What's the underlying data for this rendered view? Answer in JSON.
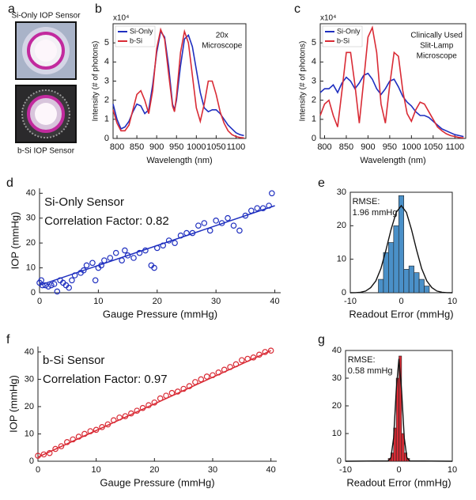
{
  "panel_a": {
    "panel": "a",
    "captions": [
      "Si-Only IOP Sensor",
      "b-Si IOP Sensor"
    ]
  },
  "chart_data": [
    {
      "type": "line",
      "panel": "b",
      "xlabel": "Wavelength (nm)",
      "ylabel": "Intensity (# of photons)",
      "y_exponent": "x10⁴",
      "annotations": [
        "20x",
        "Microscope"
      ],
      "legend": "upper left",
      "box": true,
      "xlim": [
        790,
        1125
      ],
      "xticks": [
        800,
        850,
        900,
        950,
        1000,
        1050,
        1100
      ],
      "ylim": [
        0,
        6
      ],
      "yticks": [
        0,
        1,
        2,
        3,
        4,
        5
      ],
      "x": [
        790,
        800,
        810,
        820,
        830,
        840,
        850,
        860,
        870,
        880,
        890,
        900,
        910,
        920,
        930,
        940,
        945,
        950,
        960,
        970,
        980,
        990,
        1000,
        1010,
        1020,
        1030,
        1040,
        1050,
        1060,
        1070,
        1080,
        1090,
        1100,
        1110,
        1120
      ],
      "series": [
        {
          "name": "Si-Only",
          "color": "#1f2fbf",
          "values": [
            1.8,
            1.0,
            0.5,
            0.6,
            0.9,
            1.4,
            1.8,
            1.7,
            1.3,
            1.5,
            2.8,
            4.5,
            5.6,
            5.3,
            3.8,
            1.8,
            1.5,
            2.0,
            3.8,
            5.2,
            5.4,
            4.8,
            3.6,
            2.4,
            1.6,
            1.4,
            1.5,
            1.5,
            1.3,
            1.0,
            0.7,
            0.5,
            0.3,
            0.2,
            0.15
          ]
        },
        {
          "name": "b-Si",
          "color": "#d92b35",
          "values": [
            1.5,
            0.8,
            0.4,
            0.4,
            0.7,
            1.5,
            2.3,
            2.5,
            2.0,
            1.3,
            2.5,
            4.7,
            5.7,
            5.2,
            3.4,
            1.7,
            1.4,
            2.2,
            4.5,
            5.6,
            5.0,
            3.3,
            1.6,
            0.9,
            1.8,
            3.0,
            3.0,
            2.3,
            1.4,
            0.8,
            0.4,
            0.2,
            0.1,
            0.05,
            0.03
          ]
        }
      ]
    },
    {
      "type": "line",
      "panel": "c",
      "xlabel": "Wavelength (nm)",
      "ylabel": "Intensity (# of photons)",
      "y_exponent": "x10⁴",
      "annotations": [
        "Clinically Used",
        "Slit-Lamp",
        "Microscope"
      ],
      "legend": "upper left",
      "box": true,
      "xlim": [
        790,
        1125
      ],
      "xticks": [
        800,
        850,
        900,
        950,
        1000,
        1050,
        1100
      ],
      "ylim": [
        0,
        6
      ],
      "yticks": [
        0,
        1,
        2,
        3,
        4,
        5
      ],
      "x": [
        790,
        800,
        810,
        820,
        830,
        840,
        850,
        860,
        870,
        880,
        890,
        900,
        910,
        920,
        930,
        940,
        950,
        960,
        970,
        980,
        990,
        1000,
        1010,
        1020,
        1030,
        1040,
        1050,
        1060,
        1070,
        1080,
        1090,
        1100,
        1110,
        1120
      ],
      "series": [
        {
          "name": "Si-Only",
          "color": "#1f2fbf",
          "values": [
            2.4,
            2.6,
            2.6,
            2.8,
            2.4,
            2.9,
            3.2,
            3.0,
            2.6,
            2.9,
            3.3,
            3.4,
            3.1,
            2.6,
            2.3,
            2.6,
            3.0,
            3.1,
            2.7,
            2.2,
            1.9,
            1.7,
            1.4,
            1.2,
            1.2,
            1.1,
            0.9,
            0.7,
            0.5,
            0.4,
            0.3,
            0.2,
            0.15,
            0.1
          ]
        },
        {
          "name": "b-Si",
          "color": "#d92b35",
          "values": [
            1.2,
            1.8,
            2.0,
            1.2,
            0.6,
            2.5,
            4.5,
            4.5,
            2.8,
            0.8,
            3.0,
            5.3,
            5.8,
            4.5,
            1.8,
            0.8,
            2.8,
            4.5,
            4.3,
            2.5,
            1.3,
            0.9,
            1.5,
            1.9,
            1.8,
            1.4,
            1.0,
            0.6,
            0.4,
            0.25,
            0.15,
            0.1,
            0.05,
            0.03
          ]
        }
      ]
    },
    {
      "type": "scatter",
      "panel": "d",
      "xlabel": "Gauge Pressure (mmHg)",
      "ylabel": "IOP (mmHg)",
      "annotations": [
        "Si-Only Sensor",
        "Correlation Factor: 0.82"
      ],
      "box": false,
      "color": "#1f2fbf",
      "xlim": [
        0,
        41
      ],
      "xticks": [
        0,
        10,
        20,
        30,
        40
      ],
      "ylim": [
        0,
        42
      ],
      "yticks": [
        0,
        10,
        20,
        30,
        40
      ],
      "x": [
        0,
        0.3,
        0.5,
        1,
        1.5,
        2,
        2.5,
        3,
        3.5,
        4,
        4.5,
        5,
        5.5,
        6,
        7,
        7.5,
        8,
        9,
        9.5,
        10,
        10.5,
        11,
        12,
        13,
        14,
        14.5,
        15,
        16,
        17,
        18,
        19,
        19.5,
        20,
        21,
        22,
        23,
        24,
        25,
        26,
        27,
        28,
        29,
        30,
        31,
        32,
        33,
        34,
        35,
        36,
        37,
        38,
        39,
        39.5
      ],
      "values": [
        4,
        5,
        3,
        3,
        2.5,
        3,
        3.5,
        0.5,
        5,
        4,
        3,
        2,
        5,
        7,
        8,
        9,
        11,
        12,
        5,
        10,
        11,
        13,
        14,
        16,
        13,
        17,
        15,
        14,
        16,
        17,
        11,
        10,
        18,
        19,
        21,
        20,
        23,
        24,
        24,
        27,
        28,
        25,
        29,
        28,
        30,
        27,
        25,
        31,
        33,
        34,
        34,
        35,
        40
      ],
      "fit": {
        "x": [
          0,
          40
        ],
        "y": [
          3,
          35
        ]
      }
    },
    {
      "type": "histogram",
      "panel": "e",
      "xlabel": "Readout Error (mmHg)",
      "annotations": [
        "RMSE:",
        "1.96 mmHg"
      ],
      "box": true,
      "color": "#4a90c8",
      "xlim": [
        -10,
        10
      ],
      "xticks": [
        -10,
        0,
        10
      ],
      "ylim": [
        0,
        30
      ],
      "yticks": [
        0,
        10,
        20,
        30
      ],
      "bins": [
        -4.5,
        -3.5,
        -2.5,
        -1.5,
        -0.5,
        0.5,
        1.5,
        2.5,
        3.5,
        4.5,
        5.5
      ],
      "values": [
        4,
        12,
        15,
        20,
        29,
        7,
        8,
        6,
        4,
        2
      ],
      "curve": {
        "x": [
          -10,
          -9,
          -8,
          -7,
          -6,
          -5,
          -4,
          -3,
          -2,
          -1,
          0,
          1,
          2,
          3,
          4,
          5,
          6,
          7,
          8,
          9,
          10
        ],
        "y": [
          0,
          0.03,
          0.15,
          0.5,
          1.5,
          3.5,
          7.2,
          12.7,
          18.9,
          24.0,
          26,
          24.0,
          18.9,
          12.7,
          7.2,
          3.5,
          1.5,
          0.5,
          0.15,
          0.03,
          0
        ]
      }
    },
    {
      "type": "scatter",
      "panel": "f",
      "xlabel": "Gauge Pressure (mmHg)",
      "ylabel": "IOP (mmHg)",
      "annotations": [
        "b-Si Sensor",
        "Correlation Factor: 0.97"
      ],
      "box": false,
      "color": "#d92b35",
      "xlim": [
        0,
        41
      ],
      "xticks": [
        0,
        10,
        20,
        30,
        40
      ],
      "ylim": [
        0,
        42
      ],
      "yticks": [
        0,
        10,
        20,
        30,
        40
      ],
      "x": [
        0,
        1,
        2,
        3,
        4,
        5,
        6,
        7,
        8,
        9,
        10,
        11,
        12,
        13,
        14,
        15,
        16,
        17,
        18,
        19,
        20,
        21,
        22,
        23,
        24,
        25,
        26,
        27,
        28,
        29,
        30,
        31,
        32,
        33,
        34,
        35,
        36,
        37,
        38,
        39,
        40
      ],
      "values": [
        2,
        2.5,
        3,
        4.5,
        5.5,
        7,
        8,
        9,
        10,
        11,
        11.5,
        12.5,
        13.5,
        15,
        16,
        16.5,
        17.5,
        18.5,
        19.5,
        20.5,
        21.5,
        23,
        24,
        25,
        25.5,
        26.5,
        27.5,
        29,
        30,
        31,
        31.5,
        32.5,
        33.5,
        34.5,
        35.5,
        37,
        37.5,
        38,
        39,
        40,
        40.5
      ],
      "fit": {
        "x": [
          0,
          40
        ],
        "y": [
          1.5,
          40.5
        ]
      }
    },
    {
      "type": "histogram",
      "panel": "g",
      "xlabel": "Readout Error (mmHg)",
      "annotations": [
        "RMSE:",
        "0.58 mmHg"
      ],
      "box": true,
      "color": "#d92b35",
      "xlim": [
        -10,
        10
      ],
      "xticks": [
        -10,
        0,
        10
      ],
      "ylim": [
        0,
        40
      ],
      "yticks": [
        0,
        10,
        20,
        30,
        40
      ],
      "bins": [
        -2,
        -1.5,
        -1,
        -0.5,
        0,
        0.5,
        1,
        1.5,
        2
      ],
      "values": [
        1,
        3,
        12,
        30,
        38,
        10,
        3,
        1
      ],
      "curve": {
        "x": [
          -10,
          -2,
          -1.5,
          -1,
          -0.5,
          0,
          0.5,
          1,
          1.5,
          2,
          10
        ],
        "y": [
          0,
          0.1,
          1.3,
          8.4,
          25.5,
          37,
          25.5,
          8.4,
          1.3,
          0.1,
          0
        ]
      }
    }
  ]
}
